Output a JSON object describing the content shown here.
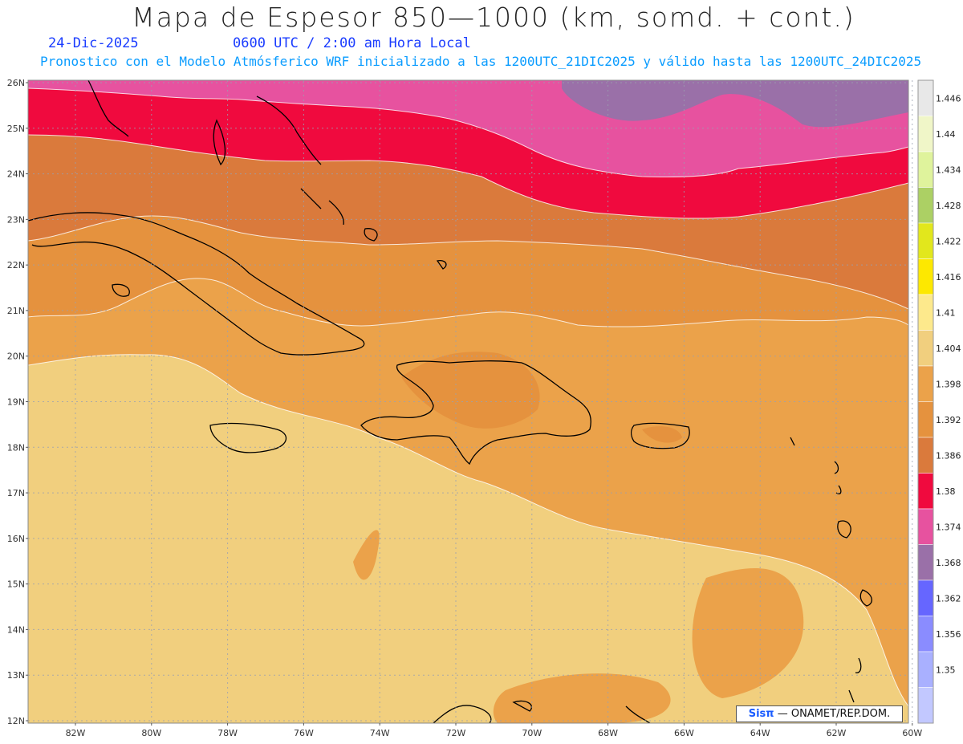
{
  "title": "Mapa de Espesor 850—1000 (km, somd. + cont.)",
  "date": "24-Dic-2025",
  "time": "0600 UTC / 2:00 am Hora Local",
  "subtitle": "Pronostico con el Modelo Atmósferico WRF inicializado a las 1200UTC_21DIC2025 y válido hasta las  1200UTC_24DIC2025",
  "credit": {
    "brand": "Sisπ",
    "text": "— ONAMET/REP.DOM."
  },
  "axes": {
    "lat_labels": [
      "26N",
      "25N",
      "24N",
      "23N",
      "22N",
      "21N",
      "20N",
      "19N",
      "18N",
      "17N",
      "16N",
      "15N",
      "14N",
      "13N",
      "12N"
    ],
    "lon_labels": [
      "82W",
      "80W",
      "78W",
      "76W",
      "74W",
      "72W",
      "70W",
      "68W",
      "66W",
      "64W",
      "62W",
      "60W"
    ]
  },
  "colorbar": {
    "labels": [
      "1.446",
      "1.44",
      "1.434",
      "1.428",
      "1.422",
      "1.416",
      "1.41",
      "1.404",
      "1.398",
      "1.392",
      "1.386",
      "1.38",
      "1.374",
      "1.368",
      "1.362",
      "1.356",
      "1.35"
    ],
    "colors": [
      "#e8e8e8",
      "#f0f6c8",
      "#dff39c",
      "#acd064",
      "#e2e71c",
      "#fde800",
      "#fde98c",
      "#f1cf7e",
      "#eba24a",
      "#e5923e",
      "#da7a3c",
      "#f00a3e",
      "#e7529f",
      "#9a70a8",
      "#6666ff",
      "#8a8cff",
      "#a9b0ff",
      "#c2c8ff"
    ]
  },
  "bands": {
    "level_1380_lt": "#e7529f",
    "level_1380": "#f00a3e",
    "level_1386": "#da7a3c",
    "level_1392": "#e5923e",
    "level_1398": "#eba24a",
    "level_1404": "#f1cf7e",
    "level_1368": "#9a70a8"
  }
}
